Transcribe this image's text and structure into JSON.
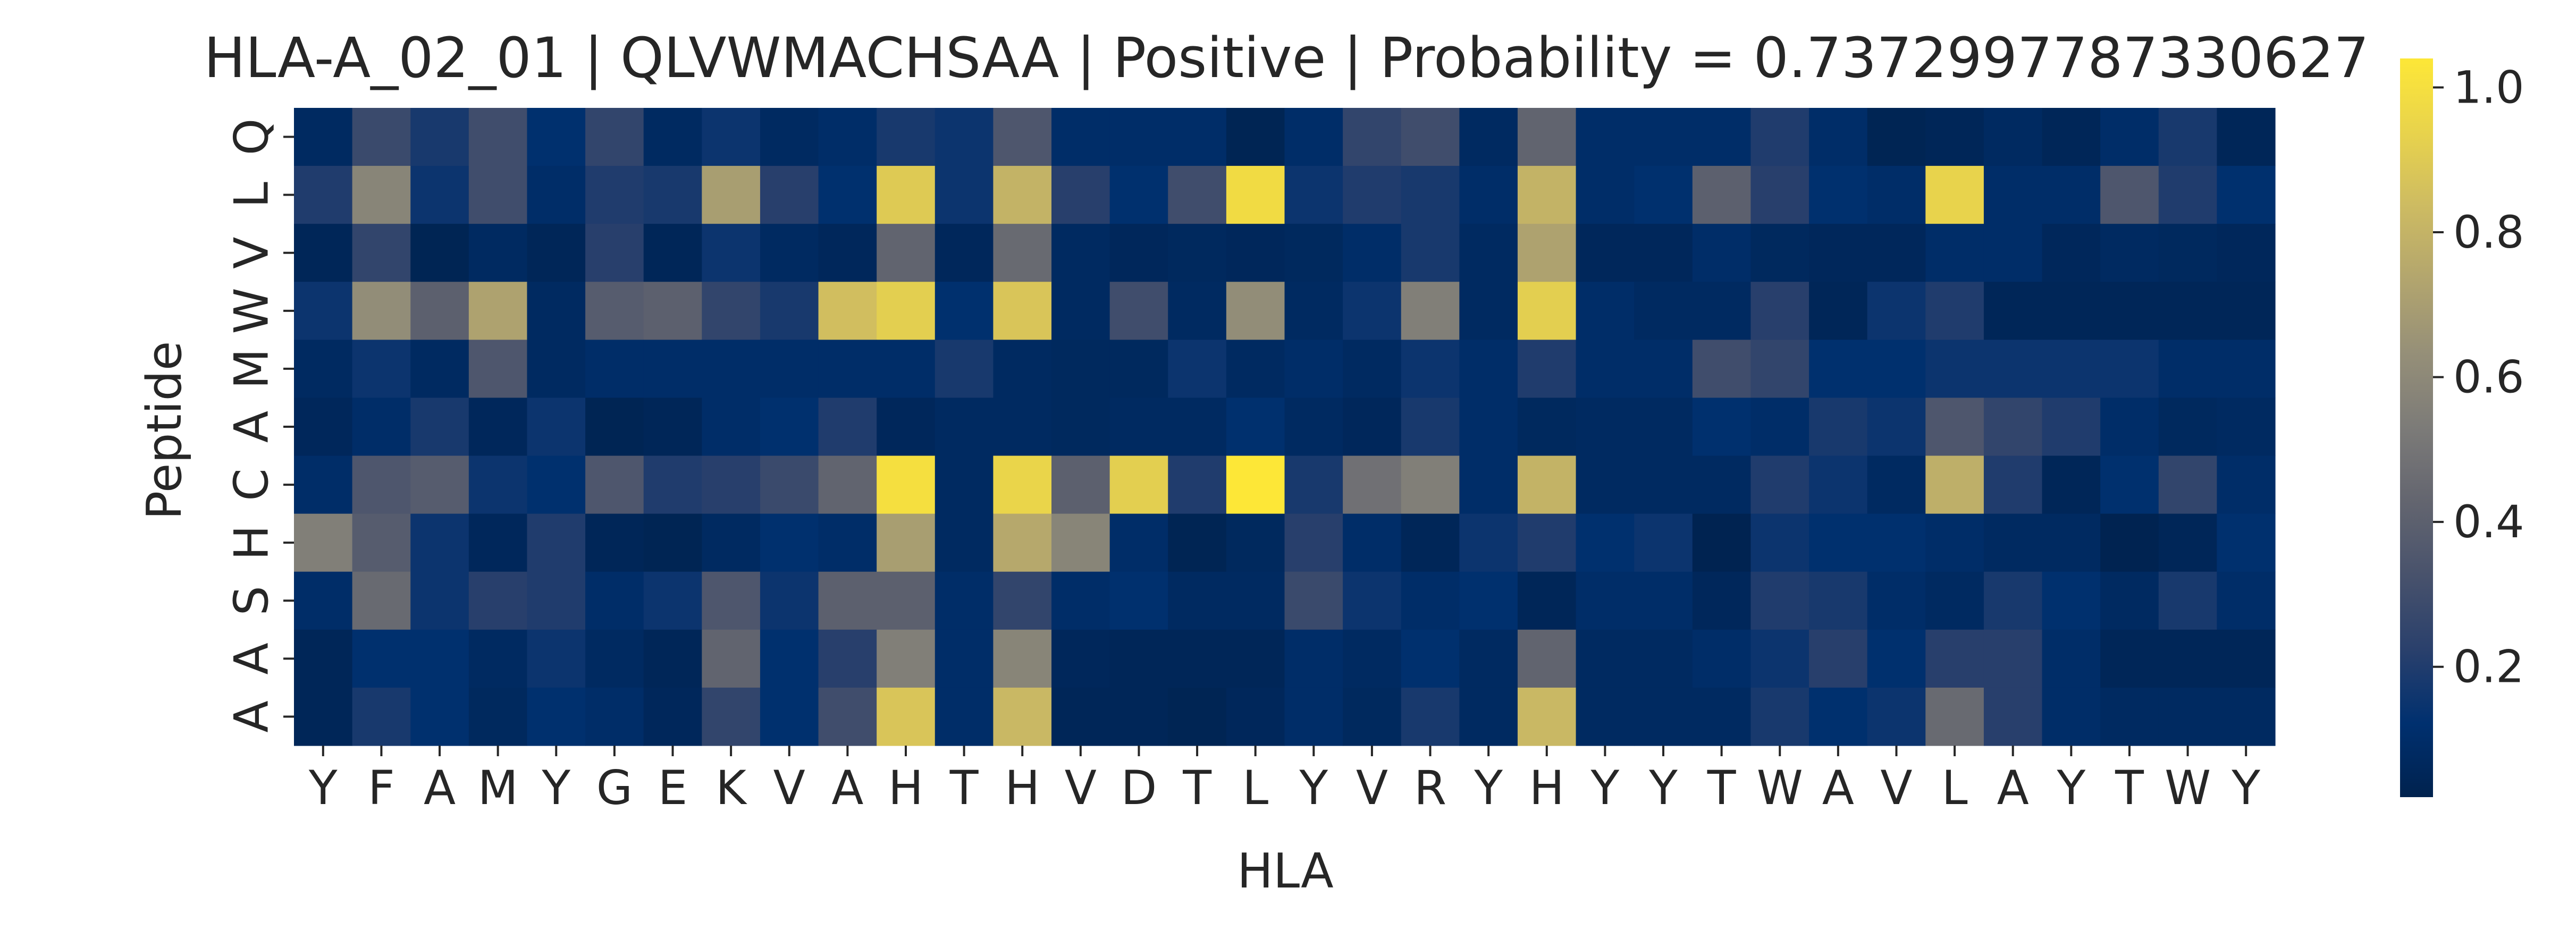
{
  "chart_data": {
    "type": "heatmap",
    "title": "HLA-A_02_01 | QLVWMACHSAA | Positive | Probability = 0.7372997787330627",
    "xlabel": "HLA",
    "ylabel": "Peptide",
    "x_labels": [
      "Y",
      "F",
      "A",
      "M",
      "Y",
      "G",
      "E",
      "K",
      "V",
      "A",
      "H",
      "T",
      "H",
      "V",
      "D",
      "T",
      "L",
      "Y",
      "V",
      "R",
      "Y",
      "H",
      "Y",
      "Y",
      "T",
      "W",
      "A",
      "V",
      "L",
      "A",
      "Y",
      "T",
      "W",
      "Y"
    ],
    "y_labels": [
      "Q",
      "L",
      "V",
      "W",
      "M",
      "A",
      "C",
      "H",
      "S",
      "A",
      "A"
    ],
    "colormap": "cividis",
    "vmin": 0.02,
    "vmax": 1.04,
    "colorbar_ticks": [
      0.2,
      0.4,
      0.6,
      0.8,
      1.0
    ],
    "colorbar_tick_labels": [
      "0.2",
      "0.4",
      "0.6",
      "0.8",
      "1.0"
    ],
    "values": [
      [
        0.08,
        0.28,
        0.18,
        0.3,
        0.12,
        0.25,
        0.08,
        0.15,
        0.08,
        0.1,
        0.18,
        0.15,
        0.35,
        0.1,
        0.1,
        0.1,
        0.04,
        0.1,
        0.25,
        0.3,
        0.08,
        0.42,
        0.1,
        0.1,
        0.1,
        0.2,
        0.1,
        0.04,
        0.05,
        0.08,
        0.05,
        0.1,
        0.18,
        0.05
      ],
      [
        0.2,
        0.58,
        0.15,
        0.3,
        0.1,
        0.2,
        0.18,
        0.7,
        0.22,
        0.12,
        0.9,
        0.15,
        0.8,
        0.22,
        0.12,
        0.3,
        0.98,
        0.15,
        0.2,
        0.18,
        0.1,
        0.8,
        0.1,
        0.12,
        0.4,
        0.22,
        0.12,
        0.1,
        0.94,
        0.1,
        0.1,
        0.35,
        0.2,
        0.12
      ],
      [
        0.05,
        0.25,
        0.04,
        0.08,
        0.05,
        0.22,
        0.05,
        0.15,
        0.08,
        0.06,
        0.42,
        0.06,
        0.45,
        0.08,
        0.06,
        0.07,
        0.06,
        0.07,
        0.1,
        0.18,
        0.08,
        0.72,
        0.06,
        0.06,
        0.1,
        0.07,
        0.06,
        0.06,
        0.1,
        0.1,
        0.06,
        0.08,
        0.07,
        0.06
      ],
      [
        0.15,
        0.62,
        0.4,
        0.72,
        0.08,
        0.38,
        0.4,
        0.25,
        0.18,
        0.85,
        0.92,
        0.12,
        0.88,
        0.08,
        0.3,
        0.08,
        0.62,
        0.08,
        0.15,
        0.55,
        0.08,
        0.92,
        0.1,
        0.08,
        0.08,
        0.22,
        0.05,
        0.15,
        0.2,
        0.05,
        0.05,
        0.05,
        0.05,
        0.05
      ],
      [
        0.08,
        0.15,
        0.08,
        0.35,
        0.08,
        0.1,
        0.1,
        0.1,
        0.1,
        0.1,
        0.1,
        0.18,
        0.08,
        0.07,
        0.07,
        0.15,
        0.08,
        0.1,
        0.08,
        0.15,
        0.1,
        0.2,
        0.1,
        0.1,
        0.3,
        0.25,
        0.12,
        0.12,
        0.15,
        0.15,
        0.15,
        0.15,
        0.1,
        0.1
      ],
      [
        0.06,
        0.1,
        0.18,
        0.06,
        0.15,
        0.04,
        0.05,
        0.1,
        0.12,
        0.2,
        0.06,
        0.08,
        0.08,
        0.07,
        0.08,
        0.08,
        0.12,
        0.08,
        0.06,
        0.18,
        0.1,
        0.07,
        0.08,
        0.08,
        0.12,
        0.1,
        0.18,
        0.15,
        0.35,
        0.25,
        0.2,
        0.1,
        0.07,
        0.08
      ],
      [
        0.1,
        0.35,
        0.38,
        0.15,
        0.12,
        0.35,
        0.2,
        0.22,
        0.28,
        0.42,
        1.0,
        0.08,
        0.95,
        0.4,
        0.92,
        0.2,
        1.04,
        0.18,
        0.48,
        0.55,
        0.1,
        0.8,
        0.08,
        0.08,
        0.08,
        0.2,
        0.15,
        0.08,
        0.78,
        0.2,
        0.05,
        0.12,
        0.25,
        0.1
      ],
      [
        0.55,
        0.38,
        0.15,
        0.06,
        0.2,
        0.05,
        0.04,
        0.08,
        0.12,
        0.1,
        0.7,
        0.08,
        0.75,
        0.58,
        0.1,
        0.04,
        0.07,
        0.22,
        0.1,
        0.05,
        0.15,
        0.2,
        0.12,
        0.15,
        0.03,
        0.15,
        0.12,
        0.12,
        0.1,
        0.08,
        0.08,
        0.03,
        0.05,
        0.12
      ],
      [
        0.1,
        0.45,
        0.15,
        0.22,
        0.2,
        0.1,
        0.15,
        0.35,
        0.15,
        0.4,
        0.4,
        0.1,
        0.25,
        0.1,
        0.12,
        0.08,
        0.08,
        0.28,
        0.15,
        0.1,
        0.12,
        0.05,
        0.1,
        0.1,
        0.06,
        0.2,
        0.18,
        0.1,
        0.08,
        0.18,
        0.12,
        0.08,
        0.18,
        0.1
      ],
      [
        0.05,
        0.12,
        0.12,
        0.08,
        0.15,
        0.08,
        0.05,
        0.42,
        0.12,
        0.22,
        0.55,
        0.1,
        0.58,
        0.06,
        0.05,
        0.05,
        0.05,
        0.1,
        0.08,
        0.12,
        0.08,
        0.42,
        0.08,
        0.08,
        0.1,
        0.15,
        0.22,
        0.12,
        0.22,
        0.22,
        0.1,
        0.05,
        0.05,
        0.05
      ],
      [
        0.05,
        0.18,
        0.12,
        0.07,
        0.12,
        0.1,
        0.06,
        0.25,
        0.12,
        0.3,
        0.88,
        0.1,
        0.82,
        0.05,
        0.05,
        0.04,
        0.06,
        0.1,
        0.07,
        0.18,
        0.08,
        0.82,
        0.08,
        0.08,
        0.08,
        0.18,
        0.12,
        0.15,
        0.45,
        0.22,
        0.1,
        0.08,
        0.08,
        0.08
      ]
    ]
  }
}
